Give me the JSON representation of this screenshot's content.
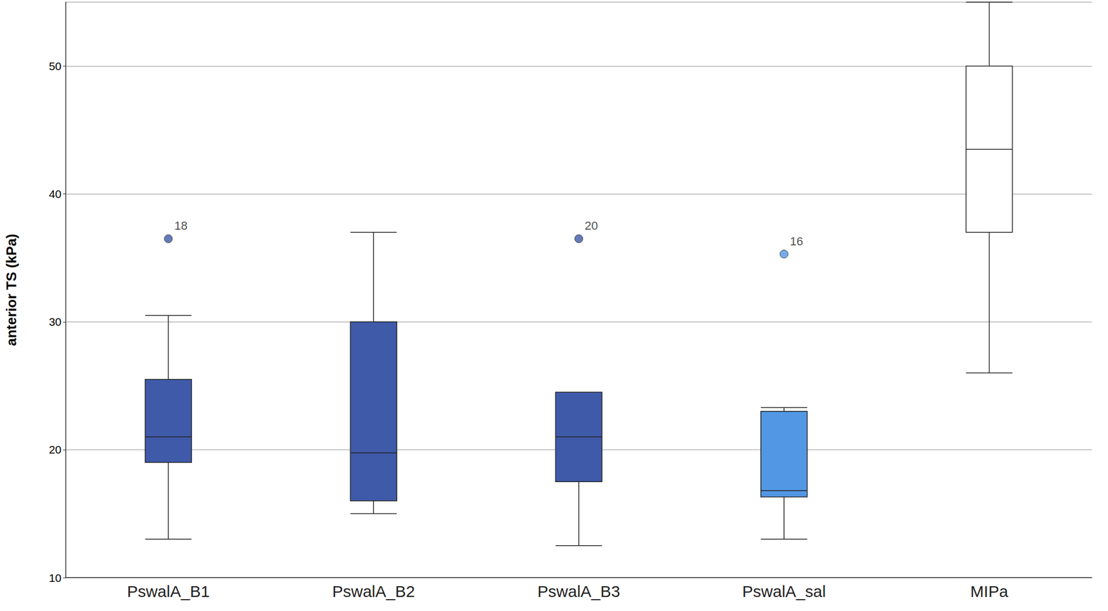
{
  "chart_data": {
    "type": "boxplot",
    "y_label": "anterior TS (kPa)",
    "categories": [
      "PswalA_B1",
      "PswalA_B2",
      "PswalA_B3",
      "PswalA_sal",
      "MIPa"
    ],
    "values": [
      [
        13,
        19,
        21,
        25.5,
        30.5
      ],
      [
        15,
        16,
        19.75,
        30,
        37
      ],
      [
        12.5,
        17.5,
        21,
        24.5,
        24.5
      ],
      [
        13,
        16.3,
        16.8,
        23,
        23.3
      ],
      [
        26,
        37,
        43.5,
        50,
        55
      ]
    ],
    "colors": [
      "#3f5aa9",
      "#3f5aa9",
      "#3f5aa9",
      "#5297e3",
      "#ffffff"
    ],
    "outliers": [
      {
        "category": "PswalA_B1",
        "value": 36.5,
        "label": "18"
      },
      {
        "category": "PswalA_B3",
        "value": 36.5,
        "label": "20"
      },
      {
        "category": "PswalA_sal",
        "value": 35.3,
        "label": "16"
      }
    ],
    "ylim": [
      10,
      55
    ],
    "yticks": [
      10,
      20,
      30,
      40,
      50
    ],
    "grid": true
  }
}
